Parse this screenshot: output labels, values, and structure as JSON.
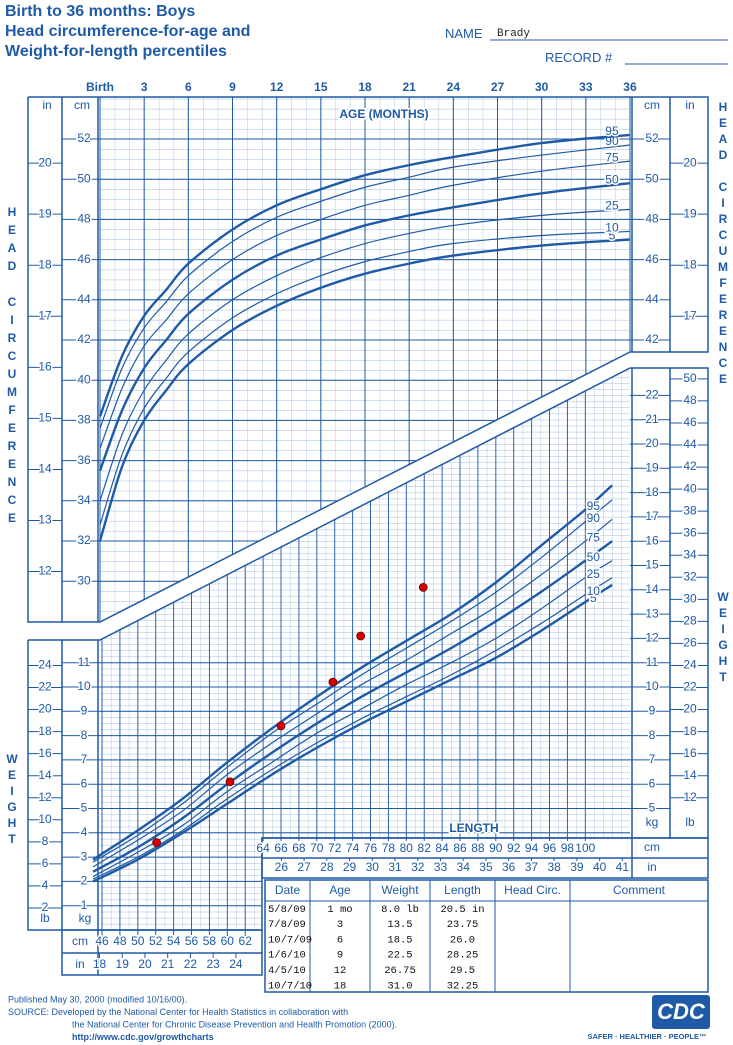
{
  "header": {
    "title": [
      "Birth to 36 months: Boys",
      "Head circumference-for-age and",
      "Weight-for-length percentiles"
    ],
    "name_label": "NAME",
    "name": "Brady",
    "record_label": "RECORD #"
  },
  "age_axis": {
    "label": "AGE (MONTHS)",
    "ticks": [
      {
        "value": 0,
        "label": "Birth"
      },
      3,
      6,
      9,
      12,
      15,
      18,
      21,
      24,
      27,
      30,
      33,
      36
    ]
  },
  "head_circumference": {
    "label": "HEAD CIRCUMFERENCE",
    "cm_unit": "cm",
    "in_unit": "in",
    "cm_ticks": [
      30,
      32,
      34,
      36,
      38,
      40,
      42,
      44,
      46,
      48,
      50,
      52
    ],
    "in_ticks": [
      12,
      13,
      14,
      15,
      16,
      17,
      18,
      19,
      20
    ],
    "right_cm_ticks": [
      42,
      44,
      46,
      48,
      50,
      52
    ],
    "right_in_ticks": [
      17,
      18,
      19,
      20
    ],
    "ages": [
      0,
      1.5,
      3,
      4.5,
      6,
      9,
      12,
      15,
      18,
      21,
      24,
      30,
      36
    ],
    "percentiles": [
      {
        "name": "5",
        "values": [
          32.0,
          35.7,
          38.0,
          39.5,
          40.8,
          42.5,
          43.7,
          44.6,
          45.3,
          45.8,
          46.2,
          46.7,
          47.0
        ]
      },
      {
        "name": "10",
        "values": [
          32.8,
          36.3,
          38.6,
          40.1,
          41.4,
          43.1,
          44.3,
          45.2,
          45.9,
          46.4,
          46.8,
          47.2,
          47.4
        ]
      },
      {
        "name": "25",
        "values": [
          34.0,
          37.3,
          39.5,
          41.0,
          42.3,
          44.0,
          45.2,
          46.1,
          46.8,
          47.3,
          47.7,
          48.2,
          48.5
        ]
      },
      {
        "name": "50",
        "values": [
          35.5,
          38.5,
          40.6,
          42.0,
          43.3,
          45.0,
          46.2,
          47.0,
          47.7,
          48.2,
          48.6,
          49.3,
          49.8
        ]
      },
      {
        "name": "75",
        "values": [
          36.6,
          39.6,
          41.7,
          43.0,
          44.3,
          46.0,
          47.2,
          48.0,
          48.7,
          49.2,
          49.7,
          50.4,
          50.9
        ]
      },
      {
        "name": "90",
        "values": [
          37.6,
          40.6,
          42.6,
          43.9,
          45.2,
          46.9,
          48.1,
          48.9,
          49.6,
          50.1,
          50.6,
          51.2,
          51.7
        ]
      },
      {
        "name": "95",
        "values": [
          38.2,
          41.2,
          43.2,
          44.5,
          45.8,
          47.5,
          48.7,
          49.5,
          50.2,
          50.7,
          51.1,
          51.8,
          52.2
        ]
      }
    ]
  },
  "weight_for_length": {
    "label": "WEIGHT",
    "length_label": "LENGTH",
    "kg_unit": "kg",
    "lb_unit": "lb",
    "cm_unit": "cm",
    "in_unit": "in",
    "kg_ticks_left": [
      1,
      2,
      3,
      4,
      5,
      6,
      7,
      8,
      9,
      10,
      11
    ],
    "lb_ticks_left": [
      2,
      4,
      6,
      8,
      10,
      12,
      14,
      16,
      18,
      20,
      22,
      24
    ],
    "kg_ticks_right": [
      5,
      6,
      7,
      8,
      9,
      10,
      11,
      12,
      13,
      14,
      15,
      16,
      17,
      18,
      19,
      20,
      21,
      22
    ],
    "lb_ticks_right": [
      12,
      14,
      16,
      18,
      20,
      22,
      24,
      26,
      28,
      30,
      32,
      34,
      36,
      38,
      40,
      42,
      44,
      46,
      48,
      50
    ],
    "length_cm_ticks_bottom": [
      46,
      48,
      50,
      52,
      54,
      56,
      58,
      60,
      62
    ],
    "length_in_ticks_bottom": [
      18,
      19,
      20,
      21,
      22,
      23,
      24
    ],
    "length_cm_ticks_top": [
      64,
      66,
      68,
      70,
      72,
      74,
      76,
      78,
      80,
      82,
      84,
      86,
      88,
      90,
      92,
      94,
      96,
      98,
      100
    ],
    "length_in_ticks_top": [
      26,
      27,
      28,
      29,
      30,
      31,
      32,
      33,
      34,
      35,
      36,
      37,
      38,
      39,
      40,
      41
    ],
    "lengths": [
      45,
      50,
      55,
      60,
      65,
      70,
      75,
      80,
      85,
      90,
      95,
      100,
      103
    ],
    "percentiles": [
      {
        "name": "5",
        "values": [
          2.0,
          2.9,
          4.0,
          5.2,
          6.4,
          7.5,
          8.5,
          9.4,
          10.3,
          11.2,
          12.3,
          13.5,
          14.2
        ]
      },
      {
        "name": "10",
        "values": [
          2.1,
          3.0,
          4.1,
          5.4,
          6.6,
          7.7,
          8.7,
          9.6,
          10.5,
          11.5,
          12.6,
          13.8,
          14.5
        ]
      },
      {
        "name": "25",
        "values": [
          2.2,
          3.2,
          4.3,
          5.7,
          6.9,
          8.1,
          9.1,
          10.1,
          11.0,
          12.0,
          13.2,
          14.5,
          15.2
        ]
      },
      {
        "name": "50",
        "values": [
          2.4,
          3.4,
          4.6,
          6.0,
          7.3,
          8.5,
          9.6,
          10.6,
          11.6,
          12.7,
          13.9,
          15.2,
          16.0
        ]
      },
      {
        "name": "75",
        "values": [
          2.6,
          3.7,
          4.9,
          6.4,
          7.7,
          8.9,
          10.1,
          11.1,
          12.2,
          13.3,
          14.6,
          16.0,
          16.9
        ]
      },
      {
        "name": "90",
        "values": [
          2.8,
          3.9,
          5.2,
          6.7,
          8.1,
          9.3,
          10.5,
          11.6,
          12.7,
          13.9,
          15.3,
          16.8,
          17.7
        ]
      },
      {
        "name": "95",
        "values": [
          2.9,
          4.1,
          5.4,
          6.9,
          8.3,
          9.6,
          10.8,
          11.9,
          13.0,
          14.3,
          15.8,
          17.3,
          18.3
        ]
      }
    ],
    "points": {
      "length_cm": [
        52.1,
        60.3,
        66.0,
        71.8,
        74.9,
        81.9
      ],
      "weight_kg": [
        3.6,
        6.1,
        8.4,
        10.2,
        12.1,
        14.1
      ]
    },
    "point_color": "#d40000"
  },
  "table": {
    "columns": [
      "Date",
      "Age",
      "Weight",
      "Length",
      "Head Circ.",
      "Comment"
    ],
    "rows": [
      [
        "5/8/09",
        "1 mo",
        "8.0 lb",
        "20.5 in"
      ],
      [
        "7/8/09",
        "3",
        "13.5",
        "23.75"
      ],
      [
        "10/7/09",
        "6",
        "18.5",
        "26.0"
      ],
      [
        "1/6/10",
        "9",
        "22.5",
        "28.25"
      ],
      [
        "4/5/10",
        "12",
        "26.75",
        "29.5"
      ],
      [
        "10/7/10",
        "18",
        "31.0",
        "32.25"
      ]
    ]
  },
  "footer": {
    "lines": [
      "Published May 30, 2000 (modified 10/16/00).",
      "SOURCE: Developed by the National Center for Health Statistics in collaboration with",
      "the National Center for Chronic Disease Prevention and Health Promotion (2000).",
      "http://www.cdc.gov/growthcharts"
    ],
    "logo": "CDC",
    "tagline": "SAFER · HEALTHIER · PEOPLE™"
  }
}
